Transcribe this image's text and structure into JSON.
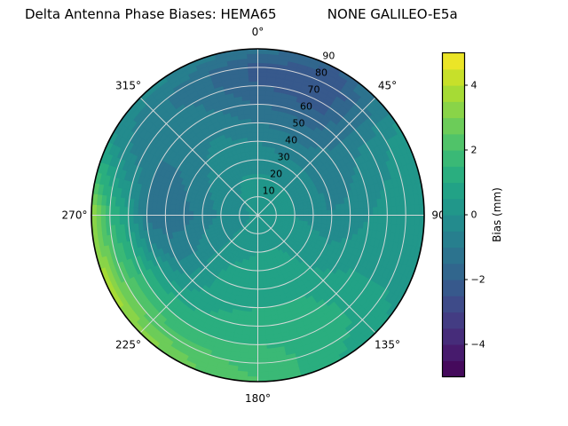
{
  "title": "Delta Antenna Phase Biases: HEMA65            NONE GALILEO-E5a",
  "chart_data": {
    "type": "heatmap",
    "projection": "polar",
    "title": "Delta Antenna Phase Biases: HEMA65            NONE GALILEO-E5a",
    "station": "HEMA65",
    "signal": "NONE GALILEO-E5a",
    "azimuth_deg": [
      0,
      30,
      60,
      90,
      120,
      150,
      180,
      210,
      240,
      270,
      300,
      330
    ],
    "zenith_deg": [
      0,
      10,
      20,
      30,
      40,
      50,
      60,
      70,
      80,
      90
    ],
    "bias_mm": [
      [
        0.2,
        0.2,
        0.2,
        0.2,
        0.2,
        0.2,
        0.2,
        0.2,
        0.2,
        0.2,
        0.2,
        0.2
      ],
      [
        0.2,
        0.1,
        0.1,
        0.1,
        0.3,
        0.3,
        0.3,
        0.3,
        -0.1,
        -0.2,
        -0.1,
        0.1
      ],
      [
        0.1,
        0.0,
        0.0,
        0.0,
        0.3,
        0.5,
        0.5,
        0.4,
        -0.2,
        -0.4,
        -0.2,
        0.0
      ],
      [
        -0.2,
        -0.3,
        -0.2,
        -0.2,
        0.3,
        0.6,
        0.6,
        0.5,
        -0.3,
        -0.8,
        -0.5,
        -0.2
      ],
      [
        -0.5,
        -0.8,
        -0.8,
        -0.5,
        0.2,
        0.8,
        0.8,
        0.6,
        -0.5,
        -1.2,
        -0.8,
        -0.3
      ],
      [
        -1.0,
        -1.2,
        -0.8,
        -0.3,
        0.3,
        1.0,
        1.0,
        0.8,
        -0.5,
        -1.5,
        -1.0,
        -0.5
      ],
      [
        -1.5,
        -1.8,
        -0.5,
        0.0,
        0.5,
        1.2,
        1.3,
        1.0,
        0.5,
        -1.2,
        -1.0,
        -0.8
      ],
      [
        -2.0,
        -2.3,
        -0.3,
        0.2,
        0.5,
        1.3,
        1.5,
        1.5,
        1.5,
        0.5,
        -0.8,
        -1.0
      ],
      [
        -2.2,
        -2.5,
        0.0,
        0.3,
        0.5,
        1.2,
        1.8,
        2.2,
        2.5,
        1.5,
        -0.5,
        -1.2
      ],
      [
        -1.2,
        -2.0,
        0.2,
        0.3,
        0.3,
        1.0,
        2.0,
        2.8,
        3.8,
        3.5,
        0.0,
        -0.5
      ]
    ],
    "angular_ticks": [
      {
        "deg": 0,
        "label": "0°"
      },
      {
        "deg": 45,
        "label": "45°"
      },
      {
        "deg": 90,
        "label": "90°"
      },
      {
        "deg": 135,
        "label": "135°"
      },
      {
        "deg": 180,
        "label": "180°"
      },
      {
        "deg": 225,
        "label": "225°"
      },
      {
        "deg": 270,
        "label": "270°"
      },
      {
        "deg": 315,
        "label": "315°"
      }
    ],
    "radial_ticks": [
      {
        "zenith": 10,
        "label": "10"
      },
      {
        "zenith": 20,
        "label": "20"
      },
      {
        "zenith": 30,
        "label": "30"
      },
      {
        "zenith": 40,
        "label": "40"
      },
      {
        "zenith": 50,
        "label": "50"
      },
      {
        "zenith": 60,
        "label": "60"
      },
      {
        "zenith": 70,
        "label": "70"
      },
      {
        "zenith": 80,
        "label": "80"
      },
      {
        "zenith": 90,
        "label": "90"
      }
    ],
    "colorbar": {
      "label": "Bias (mm)",
      "colormap": "viridis",
      "vmin": -5,
      "vmax": 5,
      "level_step": 0.5,
      "ticks": [
        {
          "v": -4,
          "label": "−4"
        },
        {
          "v": -2,
          "label": "−2"
        },
        {
          "v": 0,
          "label": "0"
        },
        {
          "v": 2,
          "label": "2"
        },
        {
          "v": 4,
          "label": "4"
        }
      ]
    },
    "grid": true,
    "grid_color": "#dcdcdc",
    "outline_color": "#000000"
  }
}
